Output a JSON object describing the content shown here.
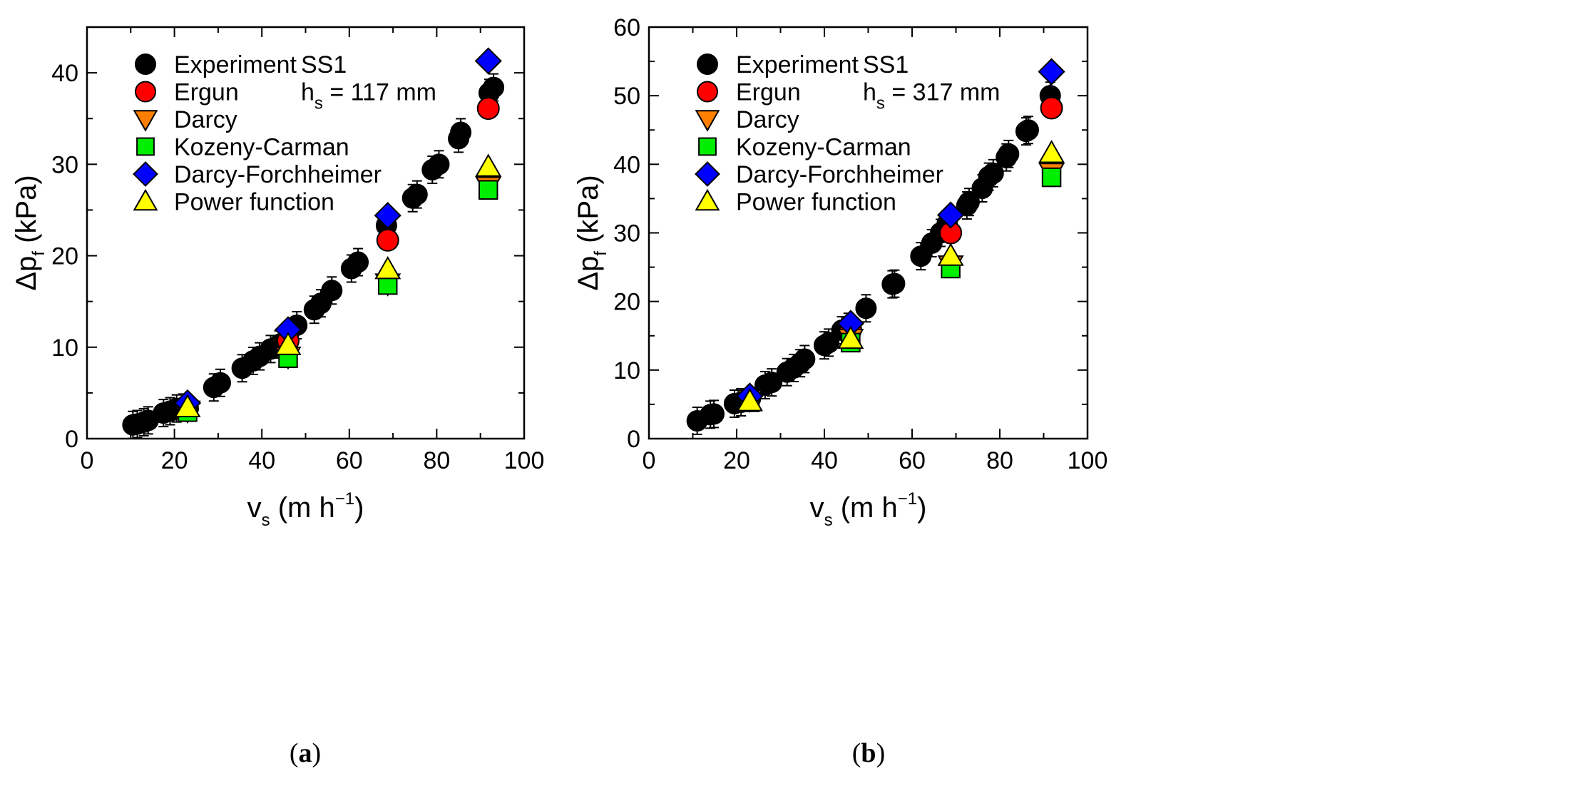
{
  "chart_data": [
    {
      "type": "scatter",
      "panel_label": "a",
      "annotation": {
        "sample": "SS1",
        "h_symbol": "h",
        "h_sub": "s",
        "h_value": " = 117 mm"
      },
      "xlabel": {
        "symbol": "v",
        "sub": "s",
        "unit_open": " (m h",
        "unit_exp": "−1",
        "unit_close": ")"
      },
      "ylabel": {
        "symbol": "Δp",
        "sub": "f",
        "unit": " (kPa)"
      },
      "xlim": [
        0,
        100
      ],
      "ylim": [
        0,
        45
      ],
      "xticks": [
        0,
        20,
        40,
        60,
        80,
        100
      ],
      "yticks": [
        0,
        10,
        20,
        30,
        40
      ],
      "legend_position": "top-left",
      "series": [
        {
          "name": "Experiment",
          "marker": "circle",
          "color": "#000000",
          "points": [
            [
              10.5,
              1.5
            ],
            [
              11.5,
              1.6
            ],
            [
              13.0,
              1.8
            ],
            [
              14.0,
              2.0
            ],
            [
              17.5,
              2.8
            ],
            [
              19.0,
              3.0
            ],
            [
              20.5,
              3.3
            ],
            [
              22.0,
              3.4
            ],
            [
              29.0,
              5.6
            ],
            [
              30.5,
              6.1
            ],
            [
              35.5,
              7.7
            ],
            [
              38.0,
              8.5
            ],
            [
              39.5,
              9.0
            ],
            [
              42.0,
              9.8
            ],
            [
              44.0,
              10.3
            ],
            [
              46.0,
              11.2
            ],
            [
              48.0,
              12.4
            ],
            [
              52.0,
              14.1
            ],
            [
              53.5,
              14.8
            ],
            [
              56.0,
              16.2
            ],
            [
              60.5,
              18.6
            ],
            [
              62.0,
              19.3
            ],
            [
              68.5,
              23.3
            ],
            [
              74.5,
              26.3
            ],
            [
              75.5,
              26.7
            ],
            [
              79.0,
              29.4
            ],
            [
              80.5,
              30.0
            ],
            [
              85.0,
              32.8
            ],
            [
              85.5,
              33.5
            ],
            [
              92.0,
              37.8
            ],
            [
              93.0,
              38.4
            ]
          ]
        },
        {
          "name": "Ergun",
          "marker": "circle",
          "color": "#ff0000",
          "points": [
            [
              23.0,
              3.3
            ],
            [
              46.0,
              10.7
            ],
            [
              68.8,
              21.7
            ],
            [
              91.8,
              36.1
            ]
          ]
        },
        {
          "name": "Darcy",
          "marker": "triangle-down",
          "color": "#ff8000",
          "points": [
            [
              23.0,
              3.1
            ],
            [
              46.0,
              9.0
            ],
            [
              68.8,
              17.0
            ],
            [
              91.8,
              27.6
            ]
          ]
        },
        {
          "name": "Kozeny-Carman",
          "marker": "square",
          "color": "#00ee00",
          "points": [
            [
              23.0,
              2.9
            ],
            [
              46.0,
              8.8
            ],
            [
              68.8,
              16.8
            ],
            [
              91.8,
              27.2
            ]
          ]
        },
        {
          "name": "Darcy-Forchheimer",
          "marker": "diamond",
          "color": "#0000ff",
          "points": [
            [
              23.0,
              3.9
            ],
            [
              46.0,
              11.9
            ],
            [
              68.8,
              24.4
            ],
            [
              91.8,
              41.3
            ]
          ]
        },
        {
          "name": "Power function",
          "marker": "triangle-up",
          "color": "#ffff00",
          "points": [
            [
              23.0,
              3.4
            ],
            [
              46.0,
              10.2
            ],
            [
              68.8,
              18.5
            ],
            [
              91.8,
              29.7
            ]
          ]
        }
      ]
    },
    {
      "type": "scatter",
      "panel_label": "b",
      "annotation": {
        "sample": "SS1",
        "h_symbol": "h",
        "h_sub": "s",
        "h_value": " = 317 mm"
      },
      "xlabel": {
        "symbol": "v",
        "sub": "s",
        "unit_open": " (m h",
        "unit_exp": "−1",
        "unit_close": ")"
      },
      "ylabel": {
        "symbol": "Δp",
        "sub": "f",
        "unit": " (kPa)"
      },
      "xlim": [
        0,
        100
      ],
      "ylim": [
        0,
        60
      ],
      "xticks": [
        0,
        20,
        40,
        60,
        80,
        100
      ],
      "yticks": [
        0,
        10,
        20,
        30,
        40,
        50,
        60
      ],
      "legend_position": "top-left",
      "series": [
        {
          "name": "Experiment",
          "marker": "circle",
          "color": "#000000",
          "points": [
            [
              11.0,
              2.6
            ],
            [
              14.0,
              3.5
            ],
            [
              14.8,
              3.6
            ],
            [
              19.5,
              5.1
            ],
            [
              21.0,
              5.3
            ],
            [
              26.5,
              7.8
            ],
            [
              28.0,
              8.2
            ],
            [
              31.5,
              9.7
            ],
            [
              33.0,
              10.3
            ],
            [
              34.5,
              11.0
            ],
            [
              35.5,
              11.6
            ],
            [
              40.0,
              13.6
            ],
            [
              41.0,
              14.0
            ],
            [
              44.0,
              15.8
            ],
            [
              45.5,
              16.3
            ],
            [
              49.5,
              19.0
            ],
            [
              55.5,
              22.5
            ],
            [
              56.0,
              22.6
            ],
            [
              62.0,
              26.6
            ],
            [
              64.5,
              28.5
            ],
            [
              66.5,
              30.0
            ],
            [
              68.0,
              31.3
            ],
            [
              72.5,
              34.0
            ],
            [
              73.0,
              34.5
            ],
            [
              76.0,
              36.5
            ],
            [
              77.5,
              38.2
            ],
            [
              78.5,
              38.7
            ],
            [
              81.5,
              41.0
            ],
            [
              82.0,
              41.5
            ],
            [
              86.0,
              44.8
            ],
            [
              86.5,
              45.0
            ],
            [
              91.5,
              50.0
            ]
          ]
        },
        {
          "name": "Ergun",
          "marker": "circle",
          "color": "#ff0000",
          "points": [
            [
              23.0,
              5.9
            ],
            [
              46.0,
              15.9
            ],
            [
              68.8,
              30.0
            ],
            [
              91.8,
              48.2
            ]
          ]
        },
        {
          "name": "Darcy",
          "marker": "triangle-down",
          "color": "#ff8000",
          "points": [
            [
              23.0,
              5.7
            ],
            [
              46.0,
              14.6
            ],
            [
              68.8,
              25.3
            ],
            [
              91.8,
              38.8
            ]
          ]
        },
        {
          "name": "Kozeny-Carman",
          "marker": "square",
          "color": "#00ee00",
          "points": [
            [
              23.0,
              5.3
            ],
            [
              46.0,
              14.0
            ],
            [
              68.8,
              24.8
            ],
            [
              91.8,
              38.1
            ]
          ]
        },
        {
          "name": "Darcy-Forchheimer",
          "marker": "diamond",
          "color": "#0000ff",
          "points": [
            [
              23.0,
              6.2
            ],
            [
              46.0,
              16.8
            ],
            [
              68.8,
              32.6
            ],
            [
              91.8,
              53.5
            ]
          ]
        },
        {
          "name": "Power function",
          "marker": "triangle-up",
          "color": "#ffff00",
          "points": [
            [
              23.0,
              5.4
            ],
            [
              46.0,
              14.5
            ],
            [
              68.8,
              26.6
            ],
            [
              91.8,
              41.6
            ]
          ]
        }
      ]
    }
  ]
}
